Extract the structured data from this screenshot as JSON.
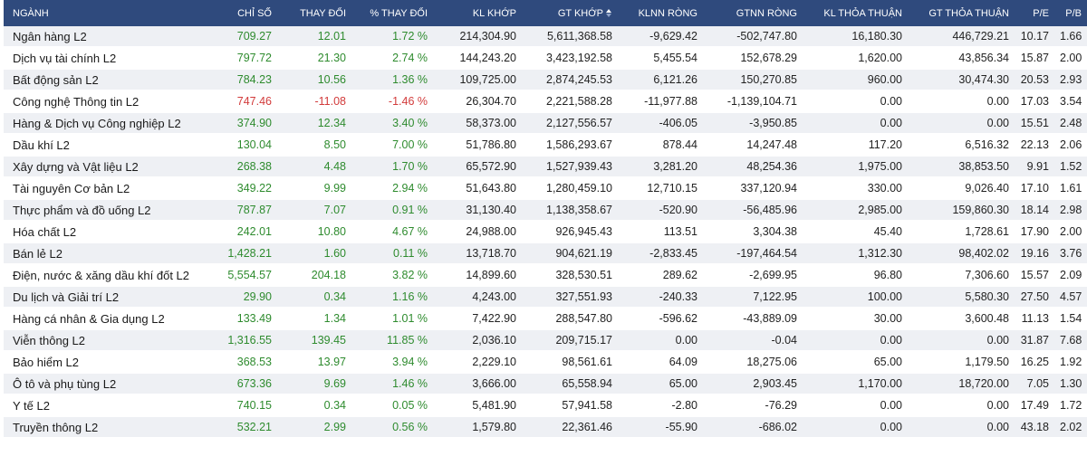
{
  "colors": {
    "header_bg": "#2f4a7d",
    "up": "#2e8b2e",
    "down": "#d23b3b",
    "stripe": "#eef0f4"
  },
  "columns": [
    "NGÀNH",
    "CHỈ SỐ",
    "THAY ĐỔI",
    "% THAY ĐỔI",
    "KL KHỚP",
    "GT KHỚP",
    "KLNN RÒNG",
    "GTNN RÒNG",
    "KL THỎA THUẬN",
    "GT THỎA THUẬN",
    "P/E",
    "P/B"
  ],
  "sorted_column_icon": "sort-arrows-icon",
  "rows": [
    {
      "name": "Ngân hàng L2",
      "index": "709.27",
      "change": "12.01",
      "pct": "1.72 %",
      "kl_khop": "214,304.90",
      "gt_khop": "5,611,368.58",
      "klnn": "-9,629.42",
      "gtnn": "-502,747.80",
      "kl_tt": "16,180.30",
      "gt_tt": "446,729.21",
      "pe": "10.17",
      "pb": "1.66",
      "dir": "up"
    },
    {
      "name": "Dịch vụ tài chính L2",
      "index": "797.72",
      "change": "21.30",
      "pct": "2.74 %",
      "kl_khop": "144,243.20",
      "gt_khop": "3,423,192.58",
      "klnn": "5,455.54",
      "gtnn": "152,678.29",
      "kl_tt": "1,620.00",
      "gt_tt": "43,856.34",
      "pe": "15.87",
      "pb": "2.00",
      "dir": "up"
    },
    {
      "name": "Bất động sản L2",
      "index": "784.23",
      "change": "10.56",
      "pct": "1.36 %",
      "kl_khop": "109,725.00",
      "gt_khop": "2,874,245.53",
      "klnn": "6,121.26",
      "gtnn": "150,270.85",
      "kl_tt": "960.00",
      "gt_tt": "30,474.30",
      "pe": "20.53",
      "pb": "2.93",
      "dir": "up"
    },
    {
      "name": "Công nghệ Thông tin L2",
      "index": "747.46",
      "change": "-11.08",
      "pct": "-1.46 %",
      "kl_khop": "26,304.70",
      "gt_khop": "2,221,588.28",
      "klnn": "-11,977.88",
      "gtnn": "-1,139,104.71",
      "kl_tt": "0.00",
      "gt_tt": "0.00",
      "pe": "17.03",
      "pb": "3.54",
      "dir": "down"
    },
    {
      "name": "Hàng & Dịch vụ Công nghiệp L2",
      "index": "374.90",
      "change": "12.34",
      "pct": "3.40 %",
      "kl_khop": "58,373.00",
      "gt_khop": "2,127,556.57",
      "klnn": "-406.05",
      "gtnn": "-3,950.85",
      "kl_tt": "0.00",
      "gt_tt": "0.00",
      "pe": "15.51",
      "pb": "2.48",
      "dir": "up"
    },
    {
      "name": "Dầu khí L2",
      "index": "130.04",
      "change": "8.50",
      "pct": "7.00 %",
      "kl_khop": "51,786.80",
      "gt_khop": "1,586,293.67",
      "klnn": "878.44",
      "gtnn": "14,247.48",
      "kl_tt": "117.20",
      "gt_tt": "6,516.32",
      "pe": "22.13",
      "pb": "2.06",
      "dir": "up"
    },
    {
      "name": "Xây dựng và Vật liệu L2",
      "index": "268.38",
      "change": "4.48",
      "pct": "1.70 %",
      "kl_khop": "65,572.90",
      "gt_khop": "1,527,939.43",
      "klnn": "3,281.20",
      "gtnn": "48,254.36",
      "kl_tt": "1,975.00",
      "gt_tt": "38,853.50",
      "pe": "9.91",
      "pb": "1.52",
      "dir": "up"
    },
    {
      "name": "Tài nguyên Cơ bản L2",
      "index": "349.22",
      "change": "9.99",
      "pct": "2.94 %",
      "kl_khop": "51,643.80",
      "gt_khop": "1,280,459.10",
      "klnn": "12,710.15",
      "gtnn": "337,120.94",
      "kl_tt": "330.00",
      "gt_tt": "9,026.40",
      "pe": "17.10",
      "pb": "1.61",
      "dir": "up"
    },
    {
      "name": "Thực phẩm và đồ uống L2",
      "index": "787.87",
      "change": "7.07",
      "pct": "0.91 %",
      "kl_khop": "31,130.40",
      "gt_khop": "1,138,358.67",
      "klnn": "-520.90",
      "gtnn": "-56,485.96",
      "kl_tt": "2,985.00",
      "gt_tt": "159,860.30",
      "pe": "18.14",
      "pb": "2.98",
      "dir": "up"
    },
    {
      "name": "Hóa chất L2",
      "index": "242.01",
      "change": "10.80",
      "pct": "4.67 %",
      "kl_khop": "24,988.00",
      "gt_khop": "926,945.43",
      "klnn": "113.51",
      "gtnn": "3,304.38",
      "kl_tt": "45.40",
      "gt_tt": "1,728.61",
      "pe": "17.90",
      "pb": "2.00",
      "dir": "up"
    },
    {
      "name": "Bán lẻ L2",
      "index": "1,428.21",
      "change": "1.60",
      "pct": "0.11 %",
      "kl_khop": "13,718.70",
      "gt_khop": "904,621.19",
      "klnn": "-2,833.45",
      "gtnn": "-197,464.54",
      "kl_tt": "1,312.30",
      "gt_tt": "98,402.02",
      "pe": "19.16",
      "pb": "3.76",
      "dir": "up"
    },
    {
      "name": "Điện, nước & xăng dầu khí đốt L2",
      "index": "5,554.57",
      "change": "204.18",
      "pct": "3.82 %",
      "kl_khop": "14,899.60",
      "gt_khop": "328,530.51",
      "klnn": "289.62",
      "gtnn": "-2,699.95",
      "kl_tt": "96.80",
      "gt_tt": "7,306.60",
      "pe": "15.57",
      "pb": "2.09",
      "dir": "up"
    },
    {
      "name": "Du lịch và Giải trí L2",
      "index": "29.90",
      "change": "0.34",
      "pct": "1.16 %",
      "kl_khop": "4,243.00",
      "gt_khop": "327,551.93",
      "klnn": "-240.33",
      "gtnn": "7,122.95",
      "kl_tt": "100.00",
      "gt_tt": "5,580.30",
      "pe": "27.50",
      "pb": "4.57",
      "dir": "up"
    },
    {
      "name": "Hàng cá nhân & Gia dụng L2",
      "index": "133.49",
      "change": "1.34",
      "pct": "1.01 %",
      "kl_khop": "7,422.90",
      "gt_khop": "288,547.80",
      "klnn": "-596.62",
      "gtnn": "-43,889.09",
      "kl_tt": "30.00",
      "gt_tt": "3,600.48",
      "pe": "11.13",
      "pb": "1.54",
      "dir": "up"
    },
    {
      "name": "Viễn thông L2",
      "index": "1,316.55",
      "change": "139.45",
      "pct": "11.85 %",
      "kl_khop": "2,036.10",
      "gt_khop": "209,715.17",
      "klnn": "0.00",
      "gtnn": "-0.04",
      "kl_tt": "0.00",
      "gt_tt": "0.00",
      "pe": "31.87",
      "pb": "7.68",
      "dir": "up"
    },
    {
      "name": "Bảo hiểm L2",
      "index": "368.53",
      "change": "13.97",
      "pct": "3.94 %",
      "kl_khop": "2,229.10",
      "gt_khop": "98,561.61",
      "klnn": "64.09",
      "gtnn": "18,275.06",
      "kl_tt": "65.00",
      "gt_tt": "1,179.50",
      "pe": "16.25",
      "pb": "1.92",
      "dir": "up"
    },
    {
      "name": "Ô tô và phụ tùng L2",
      "index": "673.36",
      "change": "9.69",
      "pct": "1.46 %",
      "kl_khop": "3,666.00",
      "gt_khop": "65,558.94",
      "klnn": "65.00",
      "gtnn": "2,903.45",
      "kl_tt": "1,170.00",
      "gt_tt": "18,720.00",
      "pe": "7.05",
      "pb": "1.30",
      "dir": "up"
    },
    {
      "name": "Y tế L2",
      "index": "740.15",
      "change": "0.34",
      "pct": "0.05 %",
      "kl_khop": "5,481.90",
      "gt_khop": "57,941.58",
      "klnn": "-2.80",
      "gtnn": "-76.29",
      "kl_tt": "0.00",
      "gt_tt": "0.00",
      "pe": "17.49",
      "pb": "1.72",
      "dir": "up"
    },
    {
      "name": "Truyền thông L2",
      "index": "532.21",
      "change": "2.99",
      "pct": "0.56 %",
      "kl_khop": "1,579.80",
      "gt_khop": "22,361.46",
      "klnn": "-55.90",
      "gtnn": "-686.02",
      "kl_tt": "0.00",
      "gt_tt": "0.00",
      "pe": "43.18",
      "pb": "2.02",
      "dir": "up"
    }
  ]
}
